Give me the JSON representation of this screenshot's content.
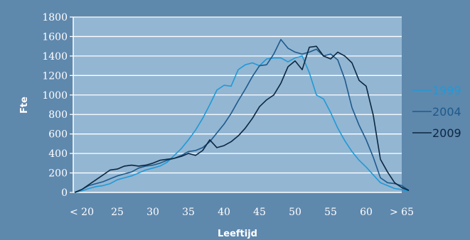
{
  "chart_data": {
    "type": "line",
    "xlabel": "Leeftijd",
    "ylabel": "Fte",
    "ylim": [
      0,
      1800
    ],
    "yticks": [
      0,
      200,
      400,
      600,
      800,
      1000,
      1200,
      1400,
      1600,
      1800
    ],
    "x_tick_labels": [
      "< 20",
      "25",
      "30",
      "35",
      "40",
      "45",
      "50",
      "55",
      "60",
      "> 65"
    ],
    "grid": "horizontal",
    "legend_position": "right",
    "colors": {
      "background": "#5f88ad",
      "plot_background": "#93b6d3",
      "gridline": "#ffffff",
      "axis": "#ffffff",
      "tick_text": "#ffffff"
    },
    "series": [
      {
        "name": "1999",
        "color": "#1f9ad6",
        "x": [
          19,
          20,
          21,
          22,
          23,
          24,
          25,
          26,
          27,
          28,
          29,
          30,
          31,
          32,
          33,
          34,
          35,
          36,
          37,
          38,
          39,
          40,
          41,
          42,
          43,
          44,
          45,
          46,
          47,
          48,
          49,
          50,
          51,
          52,
          53,
          54,
          55,
          56,
          57,
          58,
          59,
          60,
          61,
          62,
          63,
          64,
          65,
          66
        ],
        "y": [
          0,
          15,
          40,
          60,
          70,
          90,
          130,
          150,
          170,
          200,
          230,
          250,
          270,
          310,
          380,
          450,
          540,
          640,
          760,
          900,
          1050,
          1100,
          1090,
          1260,
          1310,
          1330,
          1300,
          1370,
          1380,
          1380,
          1340,
          1380,
          1400,
          1230,
          1000,
          960,
          820,
          660,
          530,
          420,
          330,
          260,
          180,
          100,
          70,
          40,
          30,
          10
        ]
      },
      {
        "name": "2004",
        "color": "#1d5a8c",
        "x": [
          19,
          20,
          21,
          22,
          23,
          24,
          25,
          26,
          27,
          28,
          29,
          30,
          31,
          32,
          33,
          34,
          35,
          36,
          37,
          38,
          39,
          40,
          41,
          42,
          43,
          44,
          45,
          46,
          47,
          48,
          49,
          50,
          51,
          52,
          53,
          54,
          55,
          56,
          57,
          58,
          59,
          60,
          61,
          62,
          63,
          64,
          65,
          66
        ],
        "y": [
          0,
          30,
          70,
          90,
          110,
          140,
          170,
          190,
          210,
          250,
          270,
          280,
          300,
          330,
          350,
          380,
          420,
          430,
          460,
          520,
          610,
          700,
          810,
          940,
          1060,
          1190,
          1300,
          1310,
          1420,
          1570,
          1480,
          1440,
          1420,
          1440,
          1470,
          1400,
          1420,
          1360,
          1160,
          870,
          690,
          540,
          360,
          150,
          100,
          90,
          70,
          20
        ]
      },
      {
        "name": "2009",
        "color": "#0c2740",
        "x": [
          19,
          20,
          21,
          22,
          23,
          24,
          25,
          26,
          27,
          28,
          29,
          30,
          31,
          32,
          33,
          34,
          35,
          36,
          37,
          38,
          39,
          40,
          41,
          42,
          43,
          44,
          45,
          46,
          47,
          48,
          49,
          50,
          51,
          52,
          53,
          54,
          55,
          56,
          57,
          58,
          59,
          60,
          61,
          62,
          63,
          64,
          65,
          66
        ],
        "y": [
          0,
          30,
          80,
          130,
          180,
          230,
          240,
          270,
          280,
          270,
          280,
          300,
          330,
          340,
          350,
          370,
          400,
          380,
          430,
          540,
          460,
          480,
          520,
          580,
          660,
          760,
          880,
          950,
          1000,
          1120,
          1290,
          1350,
          1260,
          1490,
          1500,
          1400,
          1370,
          1440,
          1400,
          1330,
          1150,
          1090,
          790,
          340,
          210,
          100,
          50,
          20
        ]
      }
    ]
  }
}
